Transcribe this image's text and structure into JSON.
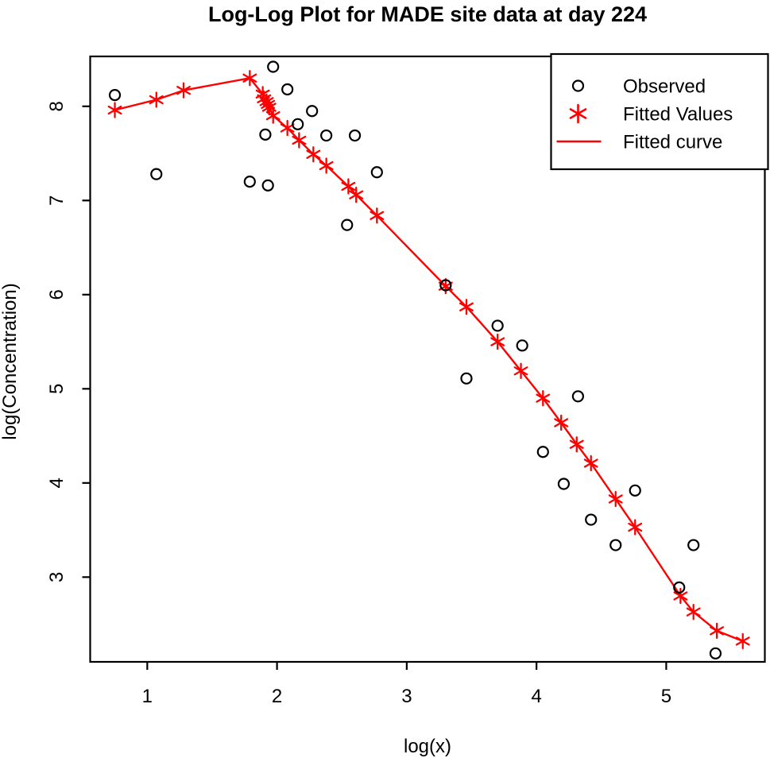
{
  "figure": {
    "title": "Log-Log Plot for MADE site data at day 224"
  },
  "colors": {
    "background": "#ffffff",
    "axis": "#000000",
    "observed": "#000000",
    "fitted": "#ff0000"
  },
  "chart_data": {
    "type": "scatter",
    "title": "Log-Log Plot for MADE site data at day 224",
    "xlabel": "log(x)",
    "ylabel": "log(Concentration)",
    "xlim": [
      0.56,
      5.76
    ],
    "ylim": [
      2.1,
      8.53
    ],
    "x_ticks": [
      1,
      2,
      3,
      4,
      5
    ],
    "y_ticks": [
      3,
      4,
      5,
      6,
      7,
      8
    ],
    "grid": false,
    "legend_position": "top-right",
    "legend_entries": [
      {
        "label": "Observed",
        "marker": "circle",
        "color": "#000000"
      },
      {
        "label": "Fitted Values",
        "marker": "asterisk",
        "color": "#ff0000"
      },
      {
        "label": "Fitted curve",
        "marker": "line",
        "color": "#ff0000"
      }
    ],
    "series": [
      {
        "name": "Observed",
        "marker": "circle",
        "color": "#000000",
        "line": false,
        "points": [
          [
            0.75,
            8.12
          ],
          [
            1.07,
            7.28
          ],
          [
            1.79,
            7.2
          ],
          [
            1.91,
            7.7
          ],
          [
            1.93,
            7.16
          ],
          [
            1.97,
            8.42
          ],
          [
            2.08,
            8.18
          ],
          [
            2.16,
            7.81
          ],
          [
            2.27,
            7.95
          ],
          [
            2.38,
            7.69
          ],
          [
            2.54,
            6.74
          ],
          [
            2.6,
            7.69
          ],
          [
            2.77,
            7.3
          ],
          [
            3.3,
            6.1
          ],
          [
            3.46,
            5.11
          ],
          [
            3.7,
            5.67
          ],
          [
            3.89,
            5.46
          ],
          [
            4.05,
            4.33
          ],
          [
            4.21,
            3.99
          ],
          [
            4.32,
            4.92
          ],
          [
            4.42,
            3.61
          ],
          [
            4.61,
            3.34
          ],
          [
            4.76,
            3.92
          ],
          [
            5.1,
            2.89
          ],
          [
            5.21,
            3.34
          ],
          [
            5.38,
            2.19
          ]
        ]
      },
      {
        "name": "Fitted Values",
        "marker": "asterisk",
        "color": "#ff0000",
        "line": true,
        "line_name": "Fitted curve",
        "points": [
          [
            0.75,
            7.96
          ],
          [
            1.07,
            8.07
          ],
          [
            1.28,
            8.17
          ],
          [
            1.79,
            8.3
          ],
          [
            1.89,
            8.13
          ],
          [
            1.9,
            8.08
          ],
          [
            1.92,
            8.05
          ],
          [
            1.93,
            8.02
          ],
          [
            1.94,
            7.99
          ],
          [
            1.97,
            7.9
          ],
          [
            2.08,
            7.77
          ],
          [
            2.17,
            7.64
          ],
          [
            2.28,
            7.49
          ],
          [
            2.38,
            7.37
          ],
          [
            2.55,
            7.15
          ],
          [
            2.61,
            7.06
          ],
          [
            2.77,
            6.84
          ],
          [
            3.3,
            6.09
          ],
          [
            3.46,
            5.87
          ],
          [
            3.7,
            5.5
          ],
          [
            3.88,
            5.19
          ],
          [
            4.05,
            4.9
          ],
          [
            4.19,
            4.64
          ],
          [
            4.31,
            4.41
          ],
          [
            4.42,
            4.21
          ],
          [
            4.61,
            3.83
          ],
          [
            4.76,
            3.53
          ],
          [
            5.11,
            2.8
          ],
          [
            5.21,
            2.63
          ],
          [
            5.39,
            2.43
          ],
          [
            5.59,
            2.32
          ]
        ]
      }
    ]
  }
}
